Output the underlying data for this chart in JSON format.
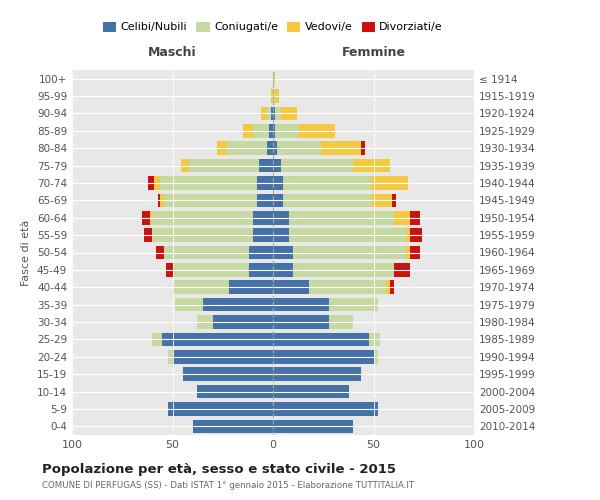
{
  "age_groups": [
    "0-4",
    "5-9",
    "10-14",
    "15-19",
    "20-24",
    "25-29",
    "30-34",
    "35-39",
    "40-44",
    "45-49",
    "50-54",
    "55-59",
    "60-64",
    "65-69",
    "70-74",
    "75-79",
    "80-84",
    "85-89",
    "90-94",
    "95-99",
    "100+"
  ],
  "birth_years": [
    "2010-2014",
    "2005-2009",
    "2000-2004",
    "1995-1999",
    "1990-1994",
    "1985-1989",
    "1980-1984",
    "1975-1979",
    "1970-1974",
    "1965-1969",
    "1960-1964",
    "1955-1959",
    "1950-1954",
    "1945-1949",
    "1940-1944",
    "1935-1939",
    "1930-1934",
    "1925-1929",
    "1920-1924",
    "1915-1919",
    "≤ 1914"
  ],
  "colors": {
    "celibe": "#4472a8",
    "coniugato": "#c5d9a0",
    "vedovo": "#f5c842",
    "divorziato": "#cc1111"
  },
  "maschi": {
    "celibe": [
      40,
      52,
      38,
      45,
      50,
      55,
      30,
      35,
      22,
      12,
      12,
      10,
      10,
      8,
      8,
      7,
      3,
      2,
      1,
      0,
      0
    ],
    "coniugato": [
      0,
      0,
      0,
      0,
      2,
      5,
      8,
      14,
      28,
      38,
      42,
      50,
      50,
      46,
      48,
      35,
      20,
      8,
      2,
      0,
      0
    ],
    "vedovo": [
      0,
      0,
      0,
      0,
      0,
      0,
      0,
      0,
      0,
      0,
      0,
      0,
      1,
      2,
      3,
      4,
      5,
      5,
      3,
      1,
      0
    ],
    "divorziato": [
      0,
      0,
      0,
      0,
      0,
      0,
      0,
      0,
      0,
      3,
      4,
      4,
      4,
      1,
      3,
      0,
      0,
      0,
      0,
      0,
      0
    ]
  },
  "femmine": {
    "nubile": [
      40,
      52,
      38,
      44,
      50,
      48,
      28,
      28,
      18,
      10,
      10,
      8,
      8,
      5,
      5,
      4,
      2,
      1,
      1,
      0,
      0
    ],
    "coniugata": [
      0,
      0,
      0,
      0,
      2,
      5,
      12,
      24,
      38,
      50,
      56,
      58,
      52,
      44,
      44,
      36,
      22,
      12,
      3,
      1,
      0
    ],
    "vedova": [
      0,
      0,
      0,
      0,
      0,
      0,
      0,
      0,
      2,
      0,
      2,
      2,
      8,
      10,
      18,
      18,
      20,
      18,
      8,
      2,
      1
    ],
    "divorziata": [
      0,
      0,
      0,
      0,
      0,
      0,
      0,
      0,
      2,
      8,
      5,
      6,
      5,
      2,
      0,
      0,
      2,
      0,
      0,
      0,
      0
    ]
  },
  "xlim": 100,
  "title": "Popolazione per età, sesso e stato civile - 2015",
  "subtitle": "COMUNE DI PERFUGAS (SS) - Dati ISTAT 1° gennaio 2015 - Elaborazione TUTTITALIA.IT",
  "xlabel_left": "Maschi",
  "xlabel_right": "Femmine",
  "ylabel_left": "Fasce di età",
  "legend_labels": [
    "Celibi/Nubili",
    "Coniugati/e",
    "Vedovi/e",
    "Divorziati/e"
  ],
  "background_color": "#ffffff",
  "plot_bg_color": "#e8e8e8",
  "grid_color": "#ffffff"
}
